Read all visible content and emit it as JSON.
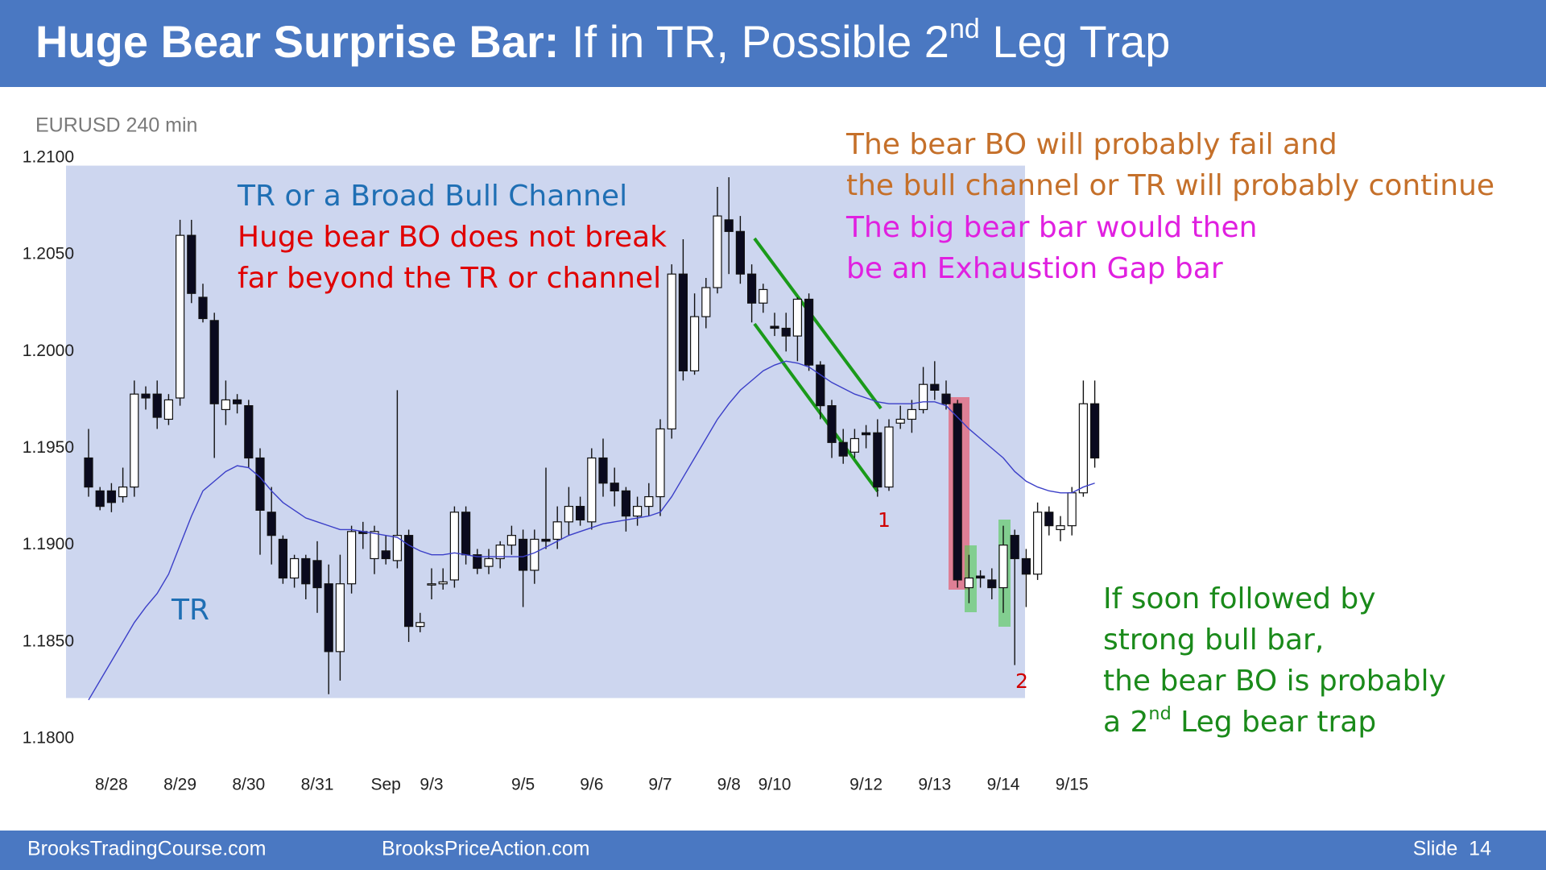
{
  "slide": {
    "title": [
      "Huge Bear Surprise Bar:",
      " If in TR, Possible 2",
      "nd",
      " Leg Trap"
    ],
    "footer": [
      "BrooksTradingCourse.com",
      "BrooksPriceAction.com",
      "Slide  14"
    ]
  },
  "chart_data": {
    "type": "candlestick",
    "y_label": "EURUSD 240 min",
    "categories": [
      null,
      null,
      "8/28",
      null,
      null,
      null,
      null,
      null,
      "8/29",
      null,
      null,
      null,
      null,
      null,
      "8/30",
      null,
      null,
      null,
      null,
      null,
      "8/31",
      null,
      null,
      null,
      null,
      null,
      "Sep",
      null,
      null,
      null,
      "9/3",
      null,
      null,
      null,
      null,
      null,
      null,
      null,
      "9/5",
      null,
      null,
      null,
      null,
      null,
      "9/6",
      null,
      null,
      null,
      null,
      null,
      "9/7",
      null,
      null,
      null,
      null,
      null,
      "9/8",
      null,
      null,
      null,
      "9/10",
      null,
      null,
      null,
      null,
      null,
      null,
      null,
      "9/12",
      null,
      null,
      null,
      null,
      null,
      "9/13",
      null,
      null,
      null,
      null,
      null,
      "9/14",
      null,
      null,
      null,
      null,
      null,
      "9/15",
      null,
      null
    ],
    "open": [
      1.1945,
      1.1928,
      1.1928,
      1.1925,
      1.193,
      1.1978,
      1.1978,
      1.1965,
      1.1976,
      1.206,
      1.2028,
      1.2016,
      1.197,
      1.1975,
      1.1972,
      1.1945,
      1.1917,
      1.1903,
      1.1883,
      1.1893,
      1.1892,
      1.188,
      1.1845,
      1.188,
      1.1907,
      1.1893,
      1.1897,
      1.1892,
      1.1905,
      1.1858,
      1.188,
      1.188,
      1.1882,
      1.1917,
      1.1895,
      1.1889,
      1.1893,
      1.19,
      1.1903,
      1.1887,
      1.1903,
      1.1903,
      1.1912,
      1.192,
      1.1912,
      1.1945,
      1.1932,
      1.1928,
      1.1915,
      1.192,
      1.1925,
      1.196,
      1.204,
      1.199,
      1.2018,
      1.2033,
      1.2068,
      1.2062,
      1.204,
      1.2025,
      1.2013,
      1.2012,
      1.2008,
      1.2027,
      1.1993,
      1.1972,
      1.1953,
      1.1948,
      1.1958,
      1.1958,
      1.193,
      1.1963,
      1.1965,
      1.197,
      1.1983,
      1.1978,
      1.1973,
      1.1878,
      1.1884,
      1.1882,
      1.1878,
      1.1905,
      1.1893,
      1.1885,
      1.1917,
      1.1908,
      1.191,
      1.1927,
      1.1973
    ],
    "high": [
      1.196,
      1.193,
      1.1932,
      1.194,
      1.1985,
      1.1982,
      1.1985,
      1.1978,
      1.2068,
      1.2068,
      1.2035,
      1.202,
      1.1985,
      1.1978,
      1.1975,
      1.195,
      1.193,
      1.1905,
      1.1895,
      1.1895,
      1.1902,
      1.189,
      1.1895,
      1.191,
      1.1912,
      1.191,
      1.1905,
      1.198,
      1.1908,
      1.1865,
      1.1888,
      1.1888,
      1.192,
      1.192,
      1.1898,
      1.1898,
      1.1902,
      1.191,
      1.1908,
      1.1908,
      1.194,
      1.192,
      1.193,
      1.1925,
      1.195,
      1.1955,
      1.194,
      1.193,
      1.1925,
      1.1932,
      1.1965,
      1.2045,
      1.2058,
      1.203,
      1.2038,
      1.2085,
      1.209,
      1.207,
      1.2045,
      1.2035,
      1.202,
      1.202,
      1.2028,
      1.203,
      1.1995,
      1.1975,
      1.196,
      1.196,
      1.1962,
      1.1965,
      1.1965,
      1.1972,
      1.1975,
      1.1992,
      1.1995,
      1.1985,
      1.1975,
      1.1895,
      1.1887,
      1.1888,
      1.191,
      1.1908,
      1.1898,
      1.1922,
      1.192,
      1.1915,
      1.193,
      1.1985,
      1.1985
    ],
    "low": [
      1.1925,
      1.1918,
      1.1917,
      1.1922,
      1.1925,
      1.197,
      1.196,
      1.1962,
      1.1972,
      1.2025,
      1.2015,
      1.1945,
      1.1962,
      1.1968,
      1.194,
      1.1895,
      1.189,
      1.188,
      1.1878,
      1.1872,
      1.1865,
      1.1823,
      1.183,
      1.1875,
      1.1898,
      1.1885,
      1.189,
      1.1888,
      1.185,
      1.1855,
      1.1872,
      1.1877,
      1.1878,
      1.189,
      1.1885,
      1.1885,
      1.1888,
      1.1895,
      1.1868,
      1.188,
      1.1898,
      1.1898,
      1.1905,
      1.191,
      1.1908,
      1.1925,
      1.192,
      1.1907,
      1.191,
      1.1915,
      1.1915,
      1.1955,
      1.1985,
      1.1988,
      1.2012,
      1.203,
      1.204,
      1.2035,
      1.2015,
      1.202,
      1.2008,
      1.2,
      1.1995,
      1.199,
      1.1965,
      1.1945,
      1.1942,
      1.1945,
      1.195,
      1.1925,
      1.1928,
      1.196,
      1.1958,
      1.1968,
      1.1975,
      1.197,
      1.1878,
      1.187,
      1.1878,
      1.1872,
      1.1865,
      1.1838,
      1.1868,
      1.1882,
      1.1905,
      1.1902,
      1.1905,
      1.1925,
      1.194
    ],
    "close": [
      1.193,
      1.192,
      1.1922,
      1.193,
      1.1978,
      1.1976,
      1.1966,
      1.1975,
      1.206,
      1.203,
      1.2017,
      1.1973,
      1.1975,
      1.1973,
      1.1945,
      1.1918,
      1.1905,
      1.1883,
      1.1893,
      1.188,
      1.1878,
      1.1845,
      1.188,
      1.1907,
      1.1906,
      1.1907,
      1.1893,
      1.1905,
      1.1858,
      1.186,
      1.188,
      1.1881,
      1.1917,
      1.1895,
      1.1888,
      1.1893,
      1.19,
      1.1905,
      1.1887,
      1.1903,
      1.1902,
      1.1912,
      1.192,
      1.1913,
      1.1945,
      1.1932,
      1.1928,
      1.1915,
      1.192,
      1.1925,
      1.196,
      1.204,
      1.199,
      1.2018,
      1.2033,
      1.207,
      1.2062,
      1.204,
      1.2025,
      1.2032,
      1.2012,
      1.2008,
      1.2027,
      1.1993,
      1.1972,
      1.1953,
      1.1946,
      1.1955,
      1.1957,
      1.193,
      1.1961,
      1.1965,
      1.197,
      1.1983,
      1.198,
      1.1973,
      1.1882,
      1.1883,
      1.1883,
      1.1878,
      1.19,
      1.1893,
      1.1885,
      1.1917,
      1.191,
      1.191,
      1.1927,
      1.1973,
      1.1945
    ],
    "moving_average": {
      "color": "#3b3fc8",
      "values": [
        1.182,
        1.183,
        1.184,
        1.185,
        1.186,
        1.1868,
        1.1875,
        1.1885,
        1.19,
        1.1915,
        1.1928,
        1.1933,
        1.1938,
        1.1941,
        1.194,
        1.1935,
        1.1928,
        1.1922,
        1.1918,
        1.1914,
        1.1912,
        1.191,
        1.1908,
        1.1908,
        1.1907,
        1.1906,
        1.1905,
        1.1904,
        1.19,
        1.1897,
        1.1895,
        1.1895,
        1.1896,
        1.1895,
        1.1894,
        1.1894,
        1.1894,
        1.1894,
        1.1894,
        1.1896,
        1.1899,
        1.1902,
        1.1905,
        1.1907,
        1.1909,
        1.1911,
        1.1912,
        1.1913,
        1.1914,
        1.1915,
        1.1917,
        1.1925,
        1.1935,
        1.1945,
        1.1955,
        1.1965,
        1.1973,
        1.198,
        1.1985,
        1.199,
        1.1993,
        1.1995,
        1.1994,
        1.1992,
        1.1988,
        1.1984,
        1.1981,
        1.1978,
        1.1976,
        1.1974,
        1.1973,
        1.1973,
        1.1973,
        1.1974,
        1.1974,
        1.1972,
        1.1966,
        1.196,
        1.1955,
        1.195,
        1.1945,
        1.1938,
        1.1933,
        1.193,
        1.1928,
        1.1927,
        1.1927,
        1.193,
        1.1932
      ]
    },
    "bull_color": "#ffffff",
    "bear_color": "#0a0a1e",
    "trading_range": {
      "top": 1.2096,
      "bottom": 1.1821,
      "color": "#cdd6ef"
    },
    "ylim": [
      1.18,
      1.21
    ],
    "yticks": [
      {
        "value": 1.21,
        "label": "1.2100"
      },
      {
        "value": 1.205,
        "label": "1.2050"
      },
      {
        "value": 1.2,
        "label": "1.2000"
      },
      {
        "value": 1.195,
        "label": "1.1950"
      },
      {
        "value": 1.19,
        "label": "1.1900"
      },
      {
        "value": 1.185,
        "label": "1.1850"
      },
      {
        "value": 1.18,
        "label": "1.1800"
      }
    ],
    "annotations": [
      {
        "lines": [
          "TR or a Broad Bull Channel"
        ],
        "color": "#1f6fb4"
      },
      {
        "lines": [
          "Huge bear BO does not break",
          "far beyond the TR or channel"
        ],
        "color": "#e00000"
      },
      {
        "lines": [
          "The bear BO will probably fail and",
          "the bull channel or TR will probably continue"
        ],
        "color": "#c5702a"
      },
      {
        "lines": [
          "The big bear bar would then",
          "be an Exhaustion Gap bar"
        ],
        "color": "#e020e0"
      },
      {
        "lines": [
          "If soon followed by",
          "strong bull bar,",
          "the bear BO is probably",
          [
            "a 2",
            "nd",
            " Leg bear trap"
          ]
        ],
        "color": "#1a8a1a"
      },
      {
        "lines": [
          "TR"
        ],
        "color": "#1f6fb4"
      },
      {
        "lines": [
          "1"
        ],
        "color": "#d00000"
      },
      {
        "lines": [
          "2"
        ],
        "color": "#d00000"
      }
    ]
  }
}
